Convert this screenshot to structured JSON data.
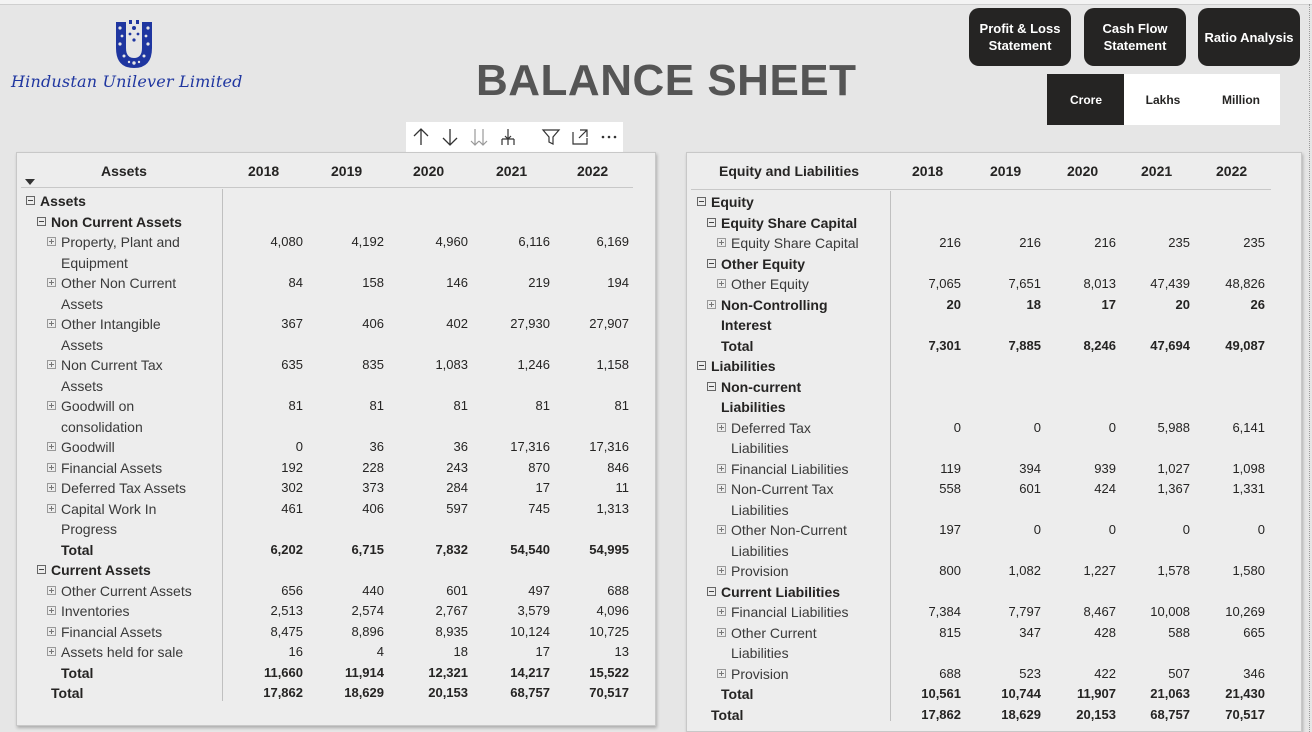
{
  "company": {
    "name": "Hindustan Unilever Limited"
  },
  "page_title": "BALANCE SHEET",
  "nav_buttons": [
    "Profit & Loss Statement",
    "Cash Flow Statement",
    "Ratio Analysis"
  ],
  "units": {
    "options": [
      "Crore",
      "Lakhs",
      "Million"
    ],
    "selected": "Crore"
  },
  "visual_header_icons": [
    "arrow-up-icon",
    "arrow-down-icon",
    "double-arrow-down-icon",
    "expand-hierarchy-icon",
    "filter-icon",
    "focus-mode-icon",
    "more-options-icon"
  ],
  "assets_table": {
    "headers": [
      "Assets",
      "2018",
      "2019",
      "2020",
      "2021",
      "2022"
    ],
    "rows": [
      {
        "label": "Assets",
        "level": 0,
        "bold": true,
        "toggle": "minus",
        "values": []
      },
      {
        "label": "Non Current Assets",
        "level": 1,
        "bold": true,
        "toggle": "minus",
        "values": []
      },
      {
        "label": "Property, Plant and",
        "label2": "Equipment",
        "level": 2,
        "toggle": "plus",
        "values": [
          "4,080",
          "4,192",
          "4,960",
          "6,116",
          "6,169"
        ]
      },
      {
        "label": "Other Non Current",
        "label2": "Assets",
        "level": 2,
        "toggle": "plus",
        "values": [
          "84",
          "158",
          "146",
          "219",
          "194"
        ]
      },
      {
        "label": "Other Intangible",
        "label2": "Assets",
        "level": 2,
        "toggle": "plus",
        "values": [
          "367",
          "406",
          "402",
          "27,930",
          "27,907"
        ]
      },
      {
        "label": "Non Current Tax",
        "label2": "Assets",
        "level": 2,
        "toggle": "plus",
        "values": [
          "635",
          "835",
          "1,083",
          "1,246",
          "1,158"
        ]
      },
      {
        "label": "Goodwill on",
        "label2": "consolidation",
        "level": 2,
        "toggle": "plus",
        "values": [
          "81",
          "81",
          "81",
          "81",
          "81"
        ]
      },
      {
        "label": "Goodwill",
        "level": 2,
        "toggle": "plus",
        "values": [
          "0",
          "36",
          "36",
          "17,316",
          "17,316"
        ]
      },
      {
        "label": "Financial Assets",
        "level": 2,
        "toggle": "plus",
        "values": [
          "192",
          "228",
          "243",
          "870",
          "846"
        ]
      },
      {
        "label": "Deferred Tax Assets",
        "level": 2,
        "toggle": "plus",
        "values": [
          "302",
          "373",
          "284",
          "17",
          "11"
        ]
      },
      {
        "label": "Capital Work In",
        "label2": "Progress",
        "level": 2,
        "toggle": "plus",
        "values": [
          "461",
          "406",
          "597",
          "745",
          "1,313"
        ]
      },
      {
        "label": "Total",
        "level": 2,
        "bold": true,
        "toggle": "none",
        "values": [
          "6,202",
          "6,715",
          "7,832",
          "54,540",
          "54,995"
        ]
      },
      {
        "label": "Current Assets",
        "level": 1,
        "bold": true,
        "toggle": "minus",
        "values": []
      },
      {
        "label": "Other Current Assets",
        "level": 2,
        "toggle": "plus",
        "values": [
          "656",
          "440",
          "601",
          "497",
          "688"
        ]
      },
      {
        "label": "Inventories",
        "level": 2,
        "toggle": "plus",
        "values": [
          "2,513",
          "2,574",
          "2,767",
          "3,579",
          "4,096"
        ]
      },
      {
        "label": "Financial Assets",
        "level": 2,
        "toggle": "plus",
        "values": [
          "8,475",
          "8,896",
          "8,935",
          "10,124",
          "10,725"
        ]
      },
      {
        "label": "Assets held for sale",
        "level": 2,
        "toggle": "plus",
        "values": [
          "16",
          "4",
          "18",
          "17",
          "13"
        ]
      },
      {
        "label": "Total",
        "level": 2,
        "bold": true,
        "toggle": "none",
        "values": [
          "11,660",
          "11,914",
          "12,321",
          "14,217",
          "15,522"
        ]
      },
      {
        "label": "Total",
        "level": 1,
        "bold": true,
        "toggle": "none",
        "values": [
          "17,862",
          "18,629",
          "20,153",
          "68,757",
          "70,517"
        ]
      }
    ]
  },
  "liabilities_table": {
    "headers": [
      "Equity and Liabilities",
      "2018",
      "2019",
      "2020",
      "2021",
      "2022"
    ],
    "rows": [
      {
        "label": "Equity",
        "level": 0,
        "bold": true,
        "toggle": "minus",
        "values": []
      },
      {
        "label": "Equity Share Capital",
        "level": 1,
        "bold": true,
        "toggle": "minus",
        "values": []
      },
      {
        "label": "Equity Share Capital",
        "level": 2,
        "toggle": "plus",
        "values": [
          "216",
          "216",
          "216",
          "235",
          "235"
        ]
      },
      {
        "label": "Other Equity",
        "level": 1,
        "bold": true,
        "toggle": "minus",
        "values": []
      },
      {
        "label": "Other Equity",
        "level": 2,
        "toggle": "plus",
        "values": [
          "7,065",
          "7,651",
          "8,013",
          "47,439",
          "48,826"
        ]
      },
      {
        "label": "Non-Controlling",
        "label2": "Interest",
        "level": 1,
        "bold": true,
        "toggle": "plus",
        "boldvals": true,
        "values": [
          "20",
          "18",
          "17",
          "20",
          "26"
        ]
      },
      {
        "label": "Total",
        "level": 1,
        "bold": true,
        "toggle": "none",
        "values": [
          "7,301",
          "7,885",
          "8,246",
          "47,694",
          "49,087"
        ]
      },
      {
        "label": "Liabilities",
        "level": 0,
        "bold": true,
        "toggle": "minus",
        "values": []
      },
      {
        "label": "Non-current",
        "label2": "Liabilities",
        "level": 1,
        "bold": true,
        "toggle": "minus",
        "values": []
      },
      {
        "label": "Deferred Tax",
        "label2": "Liabilities",
        "level": 2,
        "toggle": "plus",
        "values": [
          "0",
          "0",
          "0",
          "5,988",
          "6,141"
        ]
      },
      {
        "label": "Financial Liabilities",
        "level": 2,
        "toggle": "plus",
        "values": [
          "119",
          "394",
          "939",
          "1,027",
          "1,098"
        ]
      },
      {
        "label": "Non-Current Tax",
        "label2": "Liabilities",
        "level": 2,
        "toggle": "plus",
        "values": [
          "558",
          "601",
          "424",
          "1,367",
          "1,331"
        ]
      },
      {
        "label": "Other Non-Current",
        "label2": "Liabilities",
        "level": 2,
        "toggle": "plus",
        "values": [
          "197",
          "0",
          "0",
          "0",
          "0"
        ]
      },
      {
        "label": "Provision",
        "level": 2,
        "toggle": "plus",
        "values": [
          "800",
          "1,082",
          "1,227",
          "1,578",
          "1,580"
        ]
      },
      {
        "label": "Current Liabilities",
        "level": 1,
        "bold": true,
        "toggle": "minus",
        "values": []
      },
      {
        "label": "Financial Liabilities",
        "level": 2,
        "toggle": "plus",
        "values": [
          "7,384",
          "7,797",
          "8,467",
          "10,008",
          "10,269"
        ]
      },
      {
        "label": "Other Current",
        "label2": "Liabilities",
        "level": 2,
        "toggle": "plus",
        "values": [
          "815",
          "347",
          "428",
          "588",
          "665"
        ]
      },
      {
        "label": "Provision",
        "level": 2,
        "toggle": "plus",
        "values": [
          "688",
          "523",
          "422",
          "507",
          "346"
        ]
      },
      {
        "label": "Total",
        "level": 1,
        "bold": true,
        "toggle": "none",
        "values": [
          "10,561",
          "10,744",
          "11,907",
          "21,063",
          "21,430"
        ]
      },
      {
        "label": "Total",
        "level": 0,
        "bold": true,
        "toggle": "none",
        "values": [
          "17,862",
          "18,629",
          "20,153",
          "68,757",
          "70,517"
        ]
      }
    ]
  },
  "colors": {
    "accent": "#252423",
    "logo_blue": "#1f36a0",
    "background": "#e6e6e6"
  }
}
